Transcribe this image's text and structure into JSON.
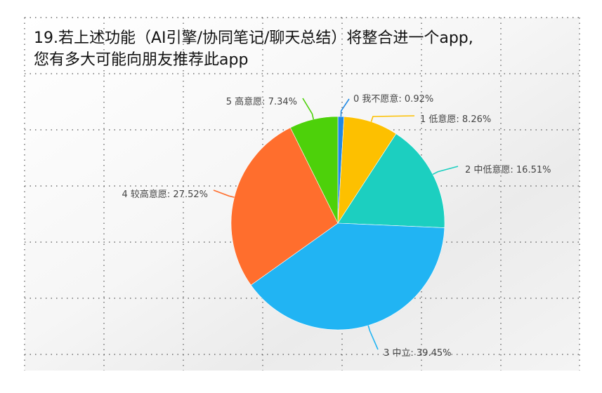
{
  "chart_data": {
    "type": "pie",
    "title_lines": [
      "19.若上述功能（AI引擎/协同笔记/聊天总结）将整合进一个app,",
      "您有多大可能向朋友推荐此app"
    ],
    "slices": [
      {
        "label": "0 我不愿意: 0.92%",
        "value": 0.92,
        "color": "#1e88e5"
      },
      {
        "label": "1 低意愿: 8.26%",
        "value": 8.26,
        "color": "#fdc000"
      },
      {
        "label": "2 中低意愿: 16.51%",
        "value": 16.51,
        "color": "#1ccfc0"
      },
      {
        "label": "3 中立: 39.45%",
        "value": 39.45,
        "color": "#21b4f3"
      },
      {
        "label": "4 较高意愿: 27.52%",
        "value": 27.52,
        "color": "#ff6e2d"
      },
      {
        "label": "5 高意愿: 7.34%",
        "value": 7.34,
        "color": "#4dd10a"
      }
    ]
  }
}
